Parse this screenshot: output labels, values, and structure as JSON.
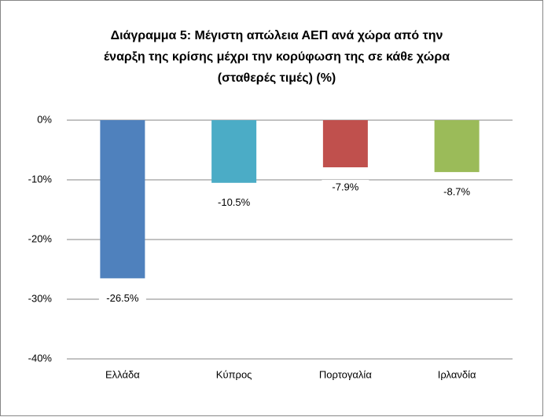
{
  "chart_data": {
    "type": "bar",
    "title": [
      "Διάγραμμα 5: Μέγιστη απώλεια ΑΕΠ ανά χώρα από την",
      "έναρξη της κρίσης μέχρι την κορύφωση της σε κάθε χώρα",
      "(σταθερές τιμές) (%)"
    ],
    "categories": [
      "Ελλάδα",
      "Κύπρος",
      "Πορτογαλία",
      "Ιρλανδία"
    ],
    "values": [
      -26.5,
      -10.5,
      -7.9,
      -8.7
    ],
    "value_labels": [
      "-26.5%",
      "-10.5%",
      "-7.9%",
      "-8.7%"
    ],
    "colors": [
      "#4f81bd",
      "#4bacc6",
      "#c0504d",
      "#9bbb59"
    ],
    "ylim": [
      -40,
      0
    ],
    "yticks": [
      {
        "value": 0,
        "label": "0%"
      },
      {
        "value": -10,
        "label": "-10%"
      },
      {
        "value": -20,
        "label": "-20%"
      },
      {
        "value": -30,
        "label": "-30%"
      },
      {
        "value": -40,
        "label": "-40%"
      }
    ],
    "grid": true
  }
}
